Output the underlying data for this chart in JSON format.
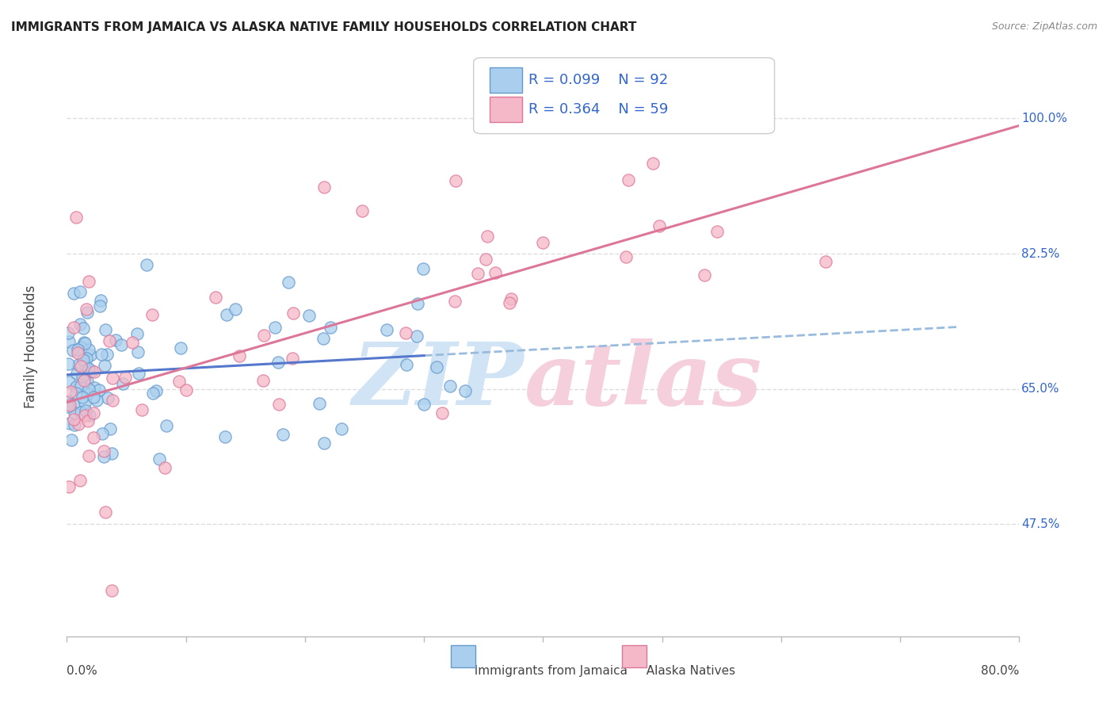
{
  "title": "IMMIGRANTS FROM JAMAICA VS ALASKA NATIVE FAMILY HOUSEHOLDS CORRELATION CHART",
  "source": "Source: ZipAtlas.com",
  "xlabel_bottom_left": "0.0%",
  "xlabel_bottom_right": "80.0%",
  "ylabel": "Family Households",
  "yticks": [
    47.5,
    65.0,
    82.5,
    100.0
  ],
  "ytick_labels": [
    "47.5%",
    "65.0%",
    "82.5%",
    "100.0%"
  ],
  "xmin": 0.0,
  "xmax": 80.0,
  "ymin": 33.0,
  "ymax": 108.0,
  "blue_color": "#aacfee",
  "blue_edge_color": "#6699cc",
  "pink_color": "#f5b8c8",
  "pink_edge_color": "#dd7799",
  "blue_line_color": "#5577cc",
  "pink_line_color": "#dd7799",
  "blue_dash_color": "#99bbdd",
  "blue_R": 0.099,
  "blue_N": 92,
  "pink_R": 0.364,
  "pink_N": 59,
  "legend_color": "#3366cc",
  "watermark_blue": "#d0e4f5",
  "watermark_pink": "#f5d0dc",
  "grid_color": "#dddddd",
  "bg_color": "#ffffff",
  "title_fontsize": 11,
  "axis_color": "#3366cc",
  "marker_size": 120
}
